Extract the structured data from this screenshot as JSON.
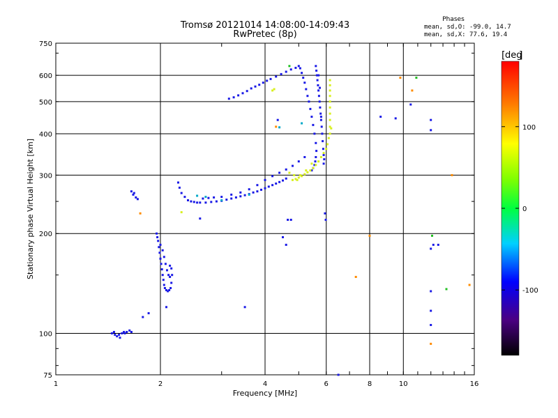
{
  "header": {
    "title_line1": "Tromsø 20121014 14:08:00-14:09:43",
    "title_line2": "RwPretec (8p)",
    "phases_title": "Phases",
    "phases_o": "mean, sd,O: -99.0, 14.7",
    "phases_x": "mean, sd,X:  77.6, 19.4"
  },
  "colorbar": {
    "unit_label": "deg",
    "ticks": [
      "100",
      "0",
      "-100"
    ],
    "tick_values": [
      100,
      0,
      -100
    ],
    "range": [
      -180,
      180
    ]
  },
  "chart_data": {
    "type": "scatter",
    "xlabel": "Frequency [MHz]",
    "ylabel": "Stationary phase Virtual Height [km]",
    "xscale": "log",
    "yscale": "log",
    "xlim": [
      1,
      16
    ],
    "ylim": [
      75,
      750
    ],
    "x_ticks": [
      1,
      2,
      4,
      6,
      8,
      10,
      16
    ],
    "x_tick_labels": [
      "1",
      "2",
      "4",
      "6",
      "8",
      "10",
      "16"
    ],
    "y_ticks": [
      75,
      100,
      200,
      300,
      400,
      500,
      600,
      750
    ],
    "y_tick_labels": [
      "75",
      "100",
      "200",
      "300",
      "400",
      "500",
      "600",
      "750"
    ],
    "grid": true,
    "series": [
      {
        "points": [
          [
            1.45,
            100
          ],
          [
            1.48,
            99
          ],
          [
            1.5,
            98
          ],
          [
            1.52,
            99
          ],
          [
            1.55,
            100
          ],
          [
            1.57,
            101
          ],
          [
            1.6,
            101
          ],
          [
            1.63,
            102
          ],
          [
            1.65,
            101
          ],
          [
            1.47,
            101
          ],
          [
            1.53,
            97
          ],
          [
            1.58,
            100
          ],
          [
            1.65,
            268
          ],
          [
            1.67,
            262
          ],
          [
            1.7,
            257
          ],
          [
            1.72,
            254
          ],
          [
            1.68,
            265
          ],
          [
            1.78,
            112
          ],
          [
            1.85,
            115
          ],
          [
            1.95,
            200
          ],
          [
            1.96,
            195
          ],
          [
            1.97,
            190
          ],
          [
            1.98,
            182
          ],
          [
            1.99,
            175
          ],
          [
            2.0,
            168
          ],
          [
            2.01,
            162
          ],
          [
            2.02,
            156
          ],
          [
            2.03,
            150
          ],
          [
            2.04,
            145
          ],
          [
            2.05,
            140
          ],
          [
            2.06,
            137
          ],
          [
            2.08,
            135
          ],
          [
            2.1,
            134
          ],
          [
            2.12,
            135
          ],
          [
            2.14,
            137
          ],
          [
            2.15,
            142
          ],
          [
            2.16,
            150
          ],
          [
            2.15,
            157
          ],
          [
            2.13,
            160
          ],
          [
            2.0,
            185
          ],
          [
            2.03,
            178
          ],
          [
            2.05,
            170
          ],
          [
            2.07,
            162
          ],
          [
            2.09,
            155
          ],
          [
            2.11,
            150
          ],
          [
            2.13,
            148
          ],
          [
            2.08,
            120
          ],
          [
            2.25,
            285
          ],
          [
            2.27,
            275
          ],
          [
            2.3,
            265
          ],
          [
            2.35,
            258
          ],
          [
            2.4,
            252
          ],
          [
            2.45,
            250
          ],
          [
            2.5,
            249
          ],
          [
            2.55,
            248
          ],
          [
            2.6,
            248
          ],
          [
            2.7,
            248
          ],
          [
            2.8,
            249
          ],
          [
            2.9,
            250
          ],
          [
            3.0,
            251
          ],
          [
            3.1,
            253
          ],
          [
            3.2,
            255
          ],
          [
            3.3,
            257
          ],
          [
            3.4,
            259
          ],
          [
            3.5,
            261
          ],
          [
            3.6,
            263
          ],
          [
            3.7,
            266
          ],
          [
            3.8,
            268
          ],
          [
            3.9,
            271
          ],
          [
            4.0,
            274
          ],
          [
            4.1,
            277
          ],
          [
            4.2,
            280
          ],
          [
            4.3,
            283
          ],
          [
            4.4,
            286
          ],
          [
            4.5,
            289
          ],
          [
            4.6,
            293
          ],
          [
            2.6,
            222
          ],
          [
            2.65,
            255
          ],
          [
            2.75,
            256
          ],
          [
            2.85,
            257
          ],
          [
            3.0,
            258
          ],
          [
            3.2,
            262
          ],
          [
            3.4,
            266
          ],
          [
            3.6,
            272
          ],
          [
            3.8,
            280
          ],
          [
            4.0,
            290
          ],
          [
            4.2,
            298
          ],
          [
            4.4,
            305
          ],
          [
            4.6,
            312
          ],
          [
            4.8,
            320
          ],
          [
            5.0,
            330
          ],
          [
            5.2,
            340
          ],
          [
            3.15,
            510
          ],
          [
            3.25,
            515
          ],
          [
            3.35,
            522
          ],
          [
            3.45,
            530
          ],
          [
            3.55,
            538
          ],
          [
            3.65,
            548
          ],
          [
            3.75,
            555
          ],
          [
            3.85,
            562
          ],
          [
            3.95,
            570
          ],
          [
            4.05,
            578
          ],
          [
            4.15,
            585
          ],
          [
            4.3,
            595
          ],
          [
            4.45,
            605
          ],
          [
            4.6,
            615
          ],
          [
            4.75,
            625
          ],
          [
            4.9,
            632
          ],
          [
            5.0,
            640
          ],
          [
            5.05,
            630
          ],
          [
            5.1,
            610
          ],
          [
            5.15,
            590
          ],
          [
            5.2,
            570
          ],
          [
            5.25,
            545
          ],
          [
            5.3,
            520
          ],
          [
            5.35,
            500
          ],
          [
            5.4,
            475
          ],
          [
            5.45,
            450
          ],
          [
            5.5,
            425
          ],
          [
            5.55,
            400
          ],
          [
            5.6,
            375
          ],
          [
            5.62,
            355
          ],
          [
            5.6,
            340
          ],
          [
            5.58,
            330
          ],
          [
            5.55,
            322
          ],
          [
            5.5,
            315
          ],
          [
            5.45,
            310
          ],
          [
            5.6,
            640
          ],
          [
            5.62,
            620
          ],
          [
            5.64,
            600
          ],
          [
            5.66,
            580
          ],
          [
            5.68,
            560
          ],
          [
            5.7,
            540
          ],
          [
            5.72,
            520
          ],
          [
            5.74,
            500
          ],
          [
            5.76,
            480
          ],
          [
            5.78,
            460
          ],
          [
            5.8,
            440
          ],
          [
            5.82,
            420
          ],
          [
            5.84,
            400
          ],
          [
            5.86,
            380
          ],
          [
            5.88,
            360
          ],
          [
            5.9,
            345
          ],
          [
            5.92,
            335
          ],
          [
            5.9,
            325
          ],
          [
            5.7,
            600
          ],
          [
            5.75,
            550
          ],
          [
            5.8,
            450
          ],
          [
            4.65,
            220
          ],
          [
            4.75,
            220
          ],
          [
            4.5,
            195
          ],
          [
            4.6,
            185
          ],
          [
            5.95,
            230
          ],
          [
            5.98,
            220
          ],
          [
            6.5,
            75
          ],
          [
            4.35,
            440
          ],
          [
            3.5,
            120
          ],
          [
            8.6,
            450
          ],
          [
            9.5,
            445
          ],
          [
            10.5,
            490
          ],
          [
            12.0,
            440
          ],
          [
            12.0,
            410
          ],
          [
            12.0,
            180
          ],
          [
            12.2,
            185
          ],
          [
            12.0,
            134
          ],
          [
            12.0,
            117
          ],
          [
            12.0,
            106
          ],
          [
            12.6,
            185
          ]
        ]
      },
      {
        "points": [
          [
            4.8,
            290
          ],
          [
            4.9,
            292
          ],
          [
            5.0,
            295
          ],
          [
            5.1,
            298
          ],
          [
            5.2,
            302
          ],
          [
            5.3,
            306
          ],
          [
            5.4,
            310
          ],
          [
            5.5,
            315
          ],
          [
            5.6,
            322
          ],
          [
            5.7,
            330
          ],
          [
            5.8,
            340
          ],
          [
            5.9,
            350
          ],
          [
            6.0,
            360
          ],
          [
            6.05,
            372
          ],
          [
            6.1,
            388
          ],
          [
            6.15,
            400
          ],
          [
            6.15,
            420
          ],
          [
            6.15,
            440
          ],
          [
            6.15,
            460
          ],
          [
            6.15,
            480
          ],
          [
            6.15,
            500
          ],
          [
            6.15,
            520
          ],
          [
            6.15,
            540
          ],
          [
            6.15,
            560
          ],
          [
            6.15,
            580
          ],
          [
            4.7,
            305
          ],
          [
            4.85,
            300
          ],
          [
            4.95,
            290
          ],
          [
            5.05,
            300
          ],
          [
            5.25,
            310
          ],
          [
            5.45,
            325
          ],
          [
            4.2,
            540
          ],
          [
            4.25,
            545
          ],
          [
            2.3,
            232
          ],
          [
            6.2,
            415
          ]
        ]
      },
      {
        "points": [
          [
            1.75,
            230
          ],
          [
            7.3,
            148
          ],
          [
            8.0,
            197
          ],
          [
            9.8,
            590
          ],
          [
            10.6,
            540
          ],
          [
            12.0,
            93
          ],
          [
            13.8,
            300
          ],
          [
            15.5,
            140
          ],
          [
            4.3,
            420
          ]
        ]
      },
      {
        "points": [
          [
            4.7,
            640
          ],
          [
            10.9,
            590
          ],
          [
            12.1,
            197
          ],
          [
            13.3,
            136
          ]
        ]
      },
      {
        "points": [
          [
            2.55,
            260
          ],
          [
            2.7,
            258
          ],
          [
            3.0,
            252
          ],
          [
            3.6,
            262
          ],
          [
            4.4,
            418
          ],
          [
            5.1,
            430
          ]
        ]
      }
    ]
  }
}
